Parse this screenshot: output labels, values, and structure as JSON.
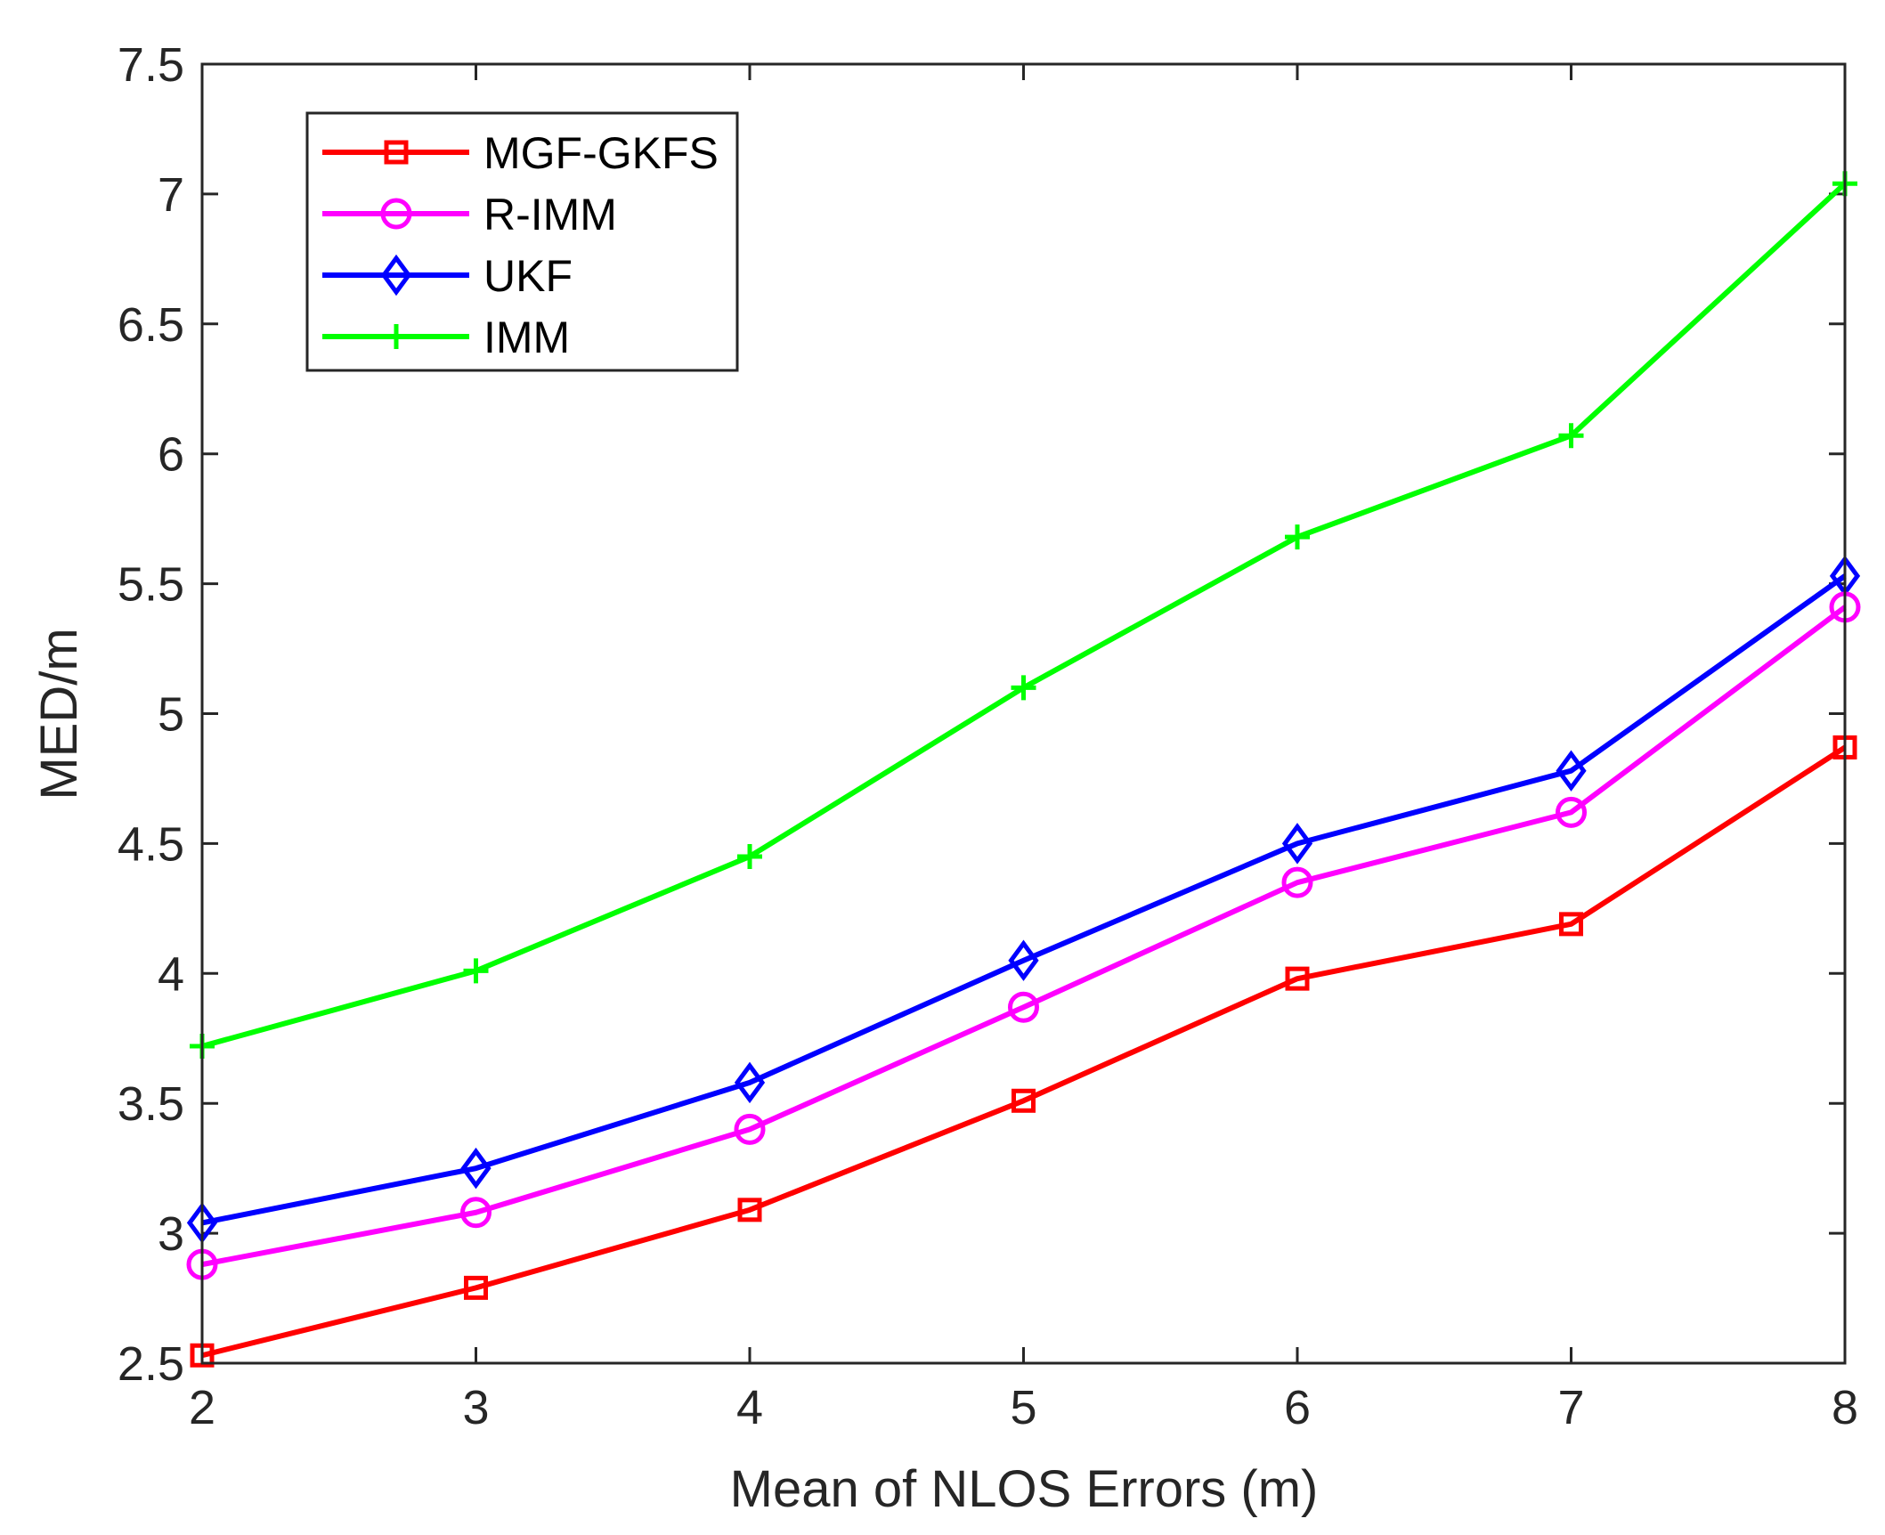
{
  "chart_data": {
    "type": "line",
    "title": "",
    "xlabel": "Mean of NLOS Errors (m)",
    "ylabel": "MED/m",
    "x": [
      2,
      3,
      4,
      5,
      6,
      7,
      8
    ],
    "xlim": [
      2,
      8
    ],
    "ylim": [
      2.5,
      7.5
    ],
    "xticks": [
      "2",
      "3",
      "4",
      "5",
      "6",
      "7",
      "8"
    ],
    "yticks": [
      "2.5",
      "3",
      "3.5",
      "4",
      "4.5",
      "5",
      "5.5",
      "6",
      "6.5",
      "7",
      "7.5"
    ],
    "grid": false,
    "legend_position": "top-left",
    "series": [
      {
        "name": "MGF-GKFS",
        "marker": "square",
        "color": "#ff0000",
        "values": [
          2.53,
          2.79,
          3.09,
          3.51,
          3.98,
          4.19,
          4.87
        ]
      },
      {
        "name": "R-IMM",
        "marker": "circle",
        "color": "#ff00ff",
        "values": [
          2.88,
          3.08,
          3.4,
          3.87,
          4.35,
          4.62,
          5.41
        ]
      },
      {
        "name": "UKF",
        "marker": "diamond",
        "color": "#0000ff",
        "values": [
          3.04,
          3.25,
          3.58,
          4.05,
          4.5,
          4.78,
          5.53
        ]
      },
      {
        "name": "IMM",
        "marker": "plus",
        "color": "#00ff00",
        "values": [
          3.72,
          4.01,
          4.45,
          5.1,
          5.68,
          6.07,
          7.04
        ]
      }
    ]
  }
}
